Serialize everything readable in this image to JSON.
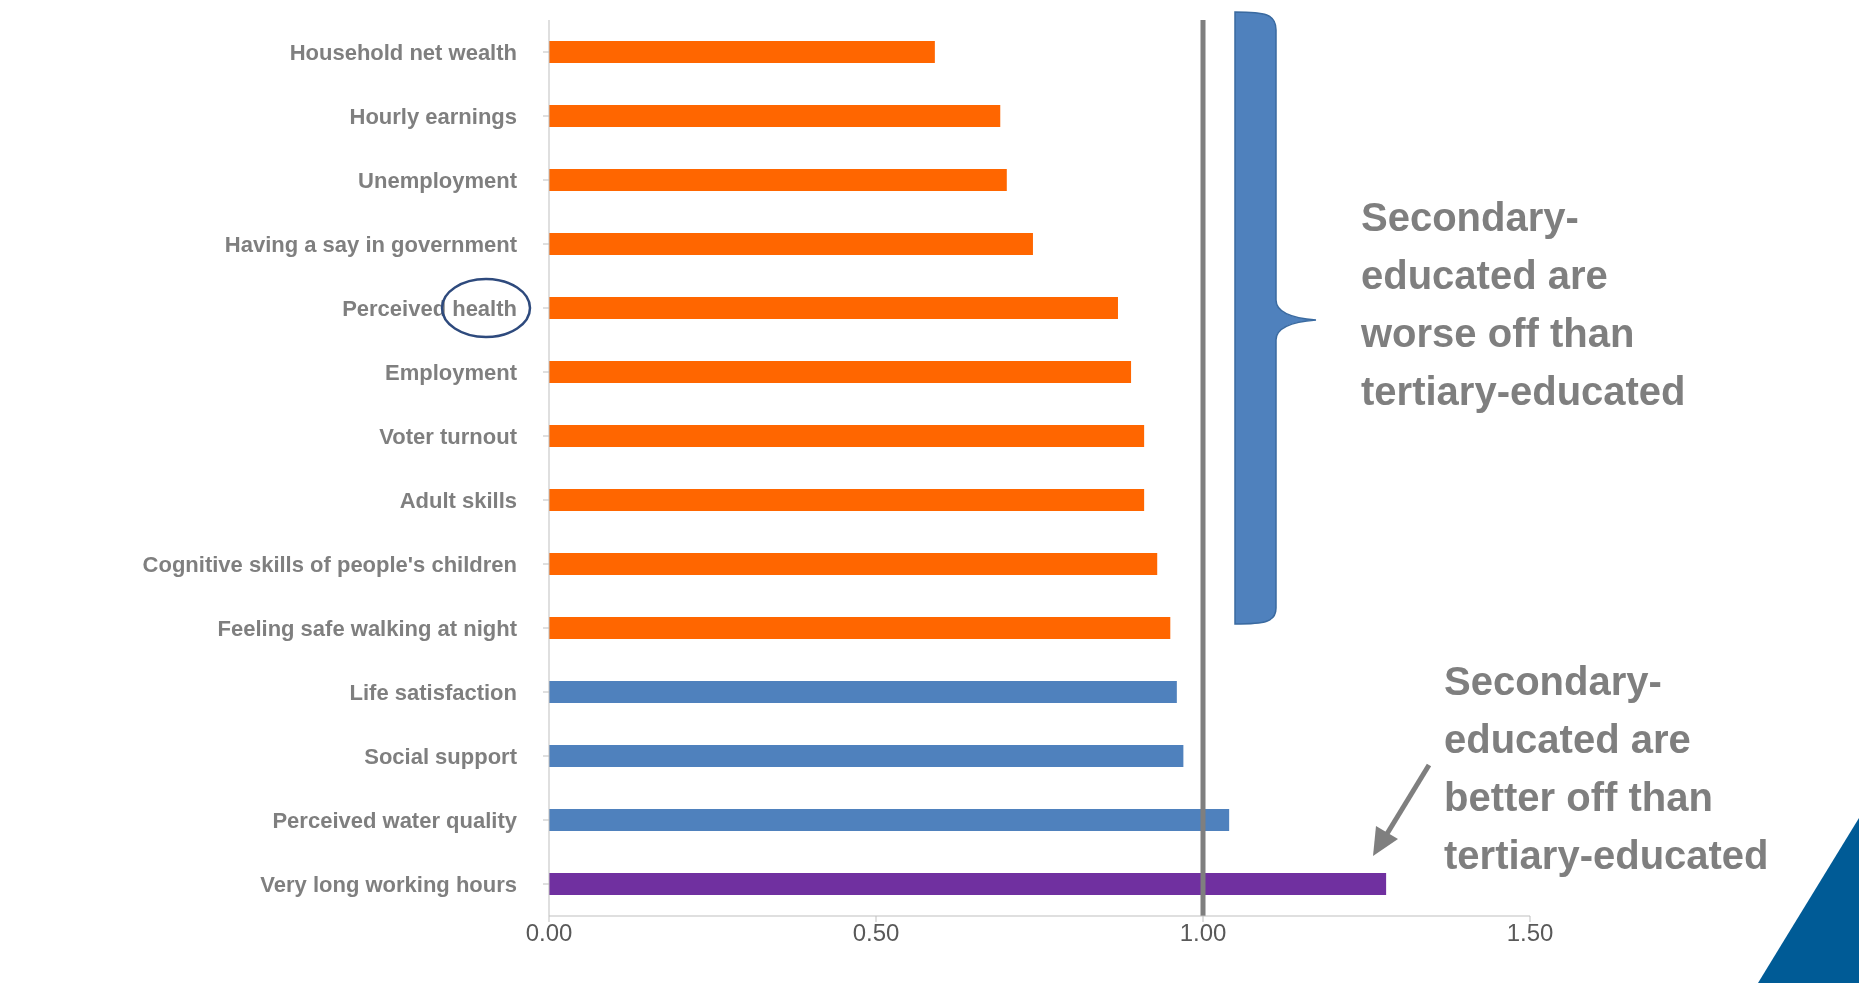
{
  "chart_data": {
    "type": "bar",
    "orientation": "horizontal",
    "categories": [
      "Household net wealth",
      "Hourly earnings",
      "Unemployment",
      "Having a say in government",
      "Perceived health",
      "Employment",
      "Voter turnout",
      "Adult skills",
      "Cognitive skills of people's children",
      "Feeling safe walking at night",
      "Life satisfaction",
      "Social support",
      "Perceived water quality",
      "Very long working hours"
    ],
    "values": [
      0.59,
      0.69,
      0.7,
      0.74,
      0.87,
      0.89,
      0.91,
      0.91,
      0.93,
      0.95,
      0.96,
      0.97,
      1.04,
      1.28
    ],
    "colors": [
      "#ff6600",
      "#ff6600",
      "#ff6600",
      "#ff6600",
      "#ff6600",
      "#ff6600",
      "#ff6600",
      "#ff6600",
      "#ff6600",
      "#ff6600",
      "#4f81bd",
      "#4f81bd",
      "#4f81bd",
      "#7030a0"
    ],
    "xlim": [
      0,
      1.5
    ],
    "xticks": [
      {
        "value": 0,
        "label": "0.00"
      },
      {
        "value": 0.5,
        "label": "0.50"
      },
      {
        "value": 1,
        "label": "1.00"
      },
      {
        "value": 1.5,
        "label": "1.50"
      }
    ],
    "ref_lines": [
      {
        "axis": "x",
        "value": 1,
        "color": "#7f7f7f"
      }
    ],
    "annotations": [
      "Secondary-educated are worse off than tertiary-educated",
      "Secondary-educated are better off than tertiary-educated"
    ]
  }
}
